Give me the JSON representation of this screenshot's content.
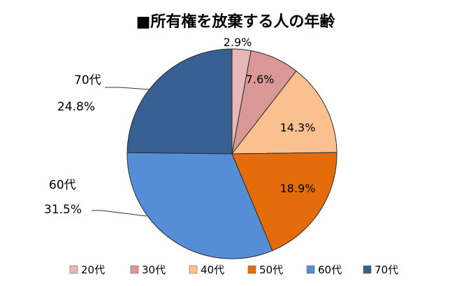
{
  "chart_data": {
    "type": "pie",
    "title": "■所有権を放棄する人の年齢",
    "categories": [
      "20代",
      "30代",
      "40代",
      "50代",
      "60代",
      "70代"
    ],
    "values": [
      2.9,
      7.6,
      14.3,
      18.9,
      31.5,
      24.8
    ],
    "value_labels": [
      "2.9%",
      "7.6%",
      "14.3%",
      "18.9%",
      "31.5%",
      "24.8%"
    ],
    "colors": [
      "#e6b9b8",
      "#d99795",
      "#fac090",
      "#e46c0a",
      "#558ed5",
      "#376092"
    ],
    "start_angle": "12 o'clock",
    "direction": "clockwise",
    "legend_position": "bottom"
  }
}
